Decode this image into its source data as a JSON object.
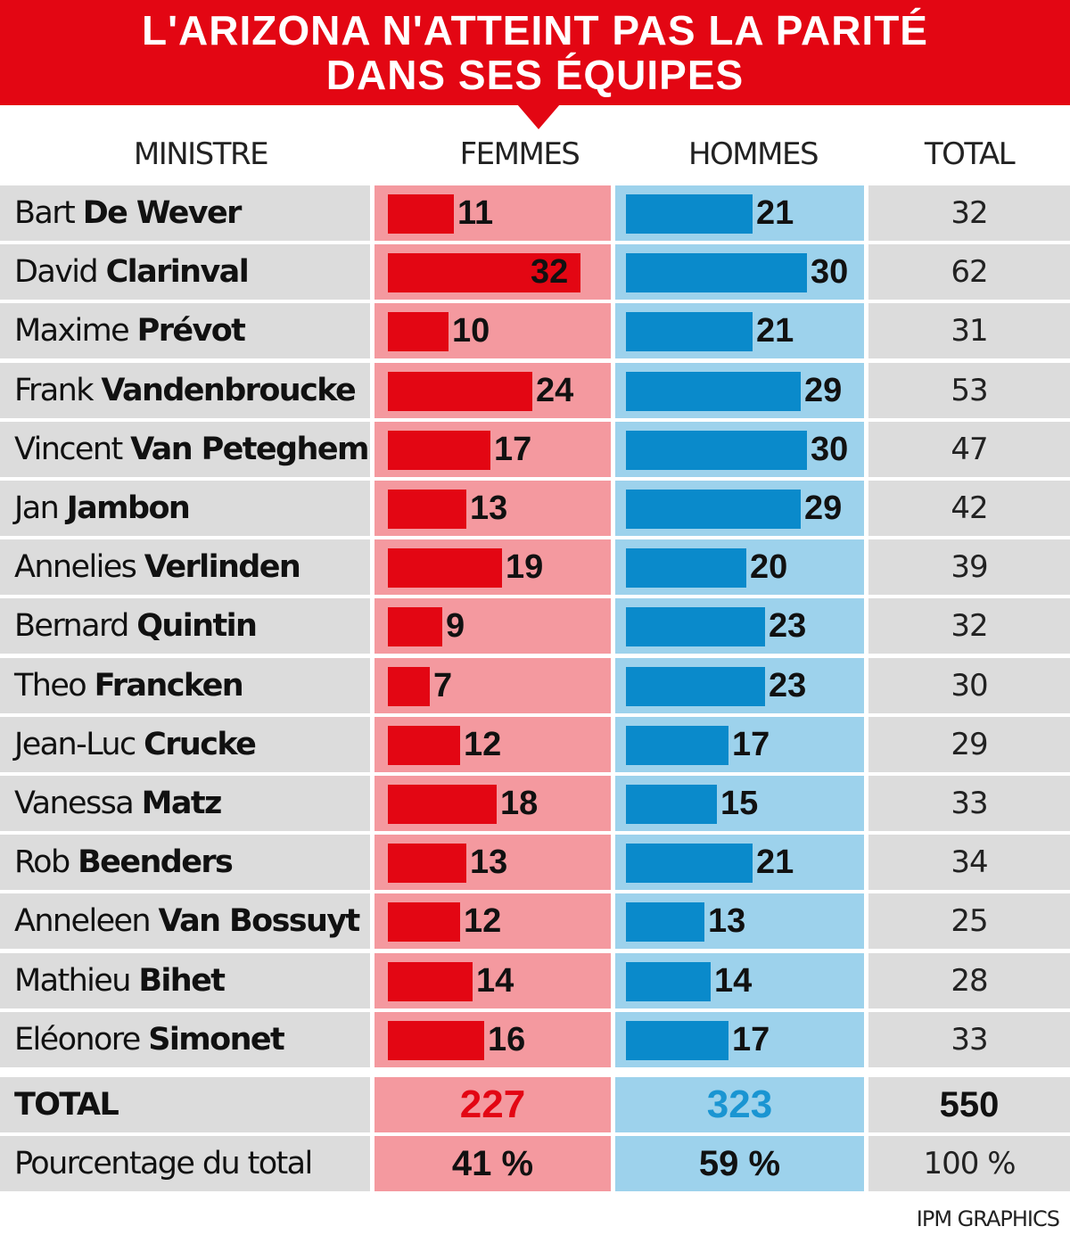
{
  "title_lines": [
    "L'ARIZONA N'ATTEINT PAS LA PARITÉ",
    "DANS SES ÉQUIPES"
  ],
  "columns": {
    "minister": "MINISTRE",
    "women": "FEMMES",
    "men": "HOMMES",
    "total": "TOTAL"
  },
  "colors": {
    "women_bar": "#e30613",
    "women_bg": "#f4999f",
    "men_bar": "#0a8acb",
    "men_bg": "#9dd2ec",
    "name_bg": "#dcdcdc"
  },
  "chart_data": {
    "type": "bar",
    "title": "L'ARIZONA N'ATTEINT PAS LA PARITÉ DANS SES ÉQUIPES",
    "categories": [
      "Bart De Wever",
      "David Clarinval",
      "Maxime Prévot",
      "Frank Vandenbroucke",
      "Vincent Van Peteghem",
      "Jan Jambon",
      "Annelies Verlinden",
      "Bernard Quintin",
      "Theo Francken",
      "Jean-Luc Crucke",
      "Vanessa Matz",
      "Rob Beenders",
      "Anneleen Van Bossuyt",
      "Mathieu Bihet",
      "Eléonore Simonet"
    ],
    "series": [
      {
        "name": "FEMMES",
        "values": [
          11,
          32,
          10,
          24,
          17,
          13,
          19,
          9,
          7,
          12,
          18,
          13,
          12,
          14,
          16
        ]
      },
      {
        "name": "HOMMES",
        "values": [
          21,
          30,
          21,
          29,
          30,
          29,
          20,
          23,
          23,
          17,
          15,
          21,
          13,
          14,
          17
        ]
      }
    ],
    "totals": [
      32,
      62,
      31,
      53,
      47,
      42,
      39,
      32,
      30,
      29,
      33,
      34,
      25,
      28,
      33
    ],
    "scale_max": 32
  },
  "rows": [
    {
      "first": "Bart",
      "last": "De Wever",
      "women": "11",
      "men": "21",
      "total": "32"
    },
    {
      "first": "David",
      "last": "Clarinval",
      "women": "32",
      "men": "30",
      "total": "62"
    },
    {
      "first": "Maxime",
      "last": "Prévot",
      "women": "10",
      "men": "21",
      "total": "31"
    },
    {
      "first": "Frank",
      "last": "Vandenbroucke",
      "women": "24",
      "men": "29",
      "total": "53"
    },
    {
      "first": "Vincent",
      "last": "Van Peteghem",
      "women": "17",
      "men": "30",
      "total": "47"
    },
    {
      "first": "Jan",
      "last": "Jambon",
      "women": "13",
      "men": "29",
      "total": "42"
    },
    {
      "first": "Annelies",
      "last": "Verlinden",
      "women": "19",
      "men": "20",
      "total": "39"
    },
    {
      "first": "Bernard",
      "last": "Quintin",
      "women": "9",
      "men": "23",
      "total": "32"
    },
    {
      "first": "Theo",
      "last": "Francken",
      "women": "7",
      "men": "23",
      "total": "30"
    },
    {
      "first": "Jean-Luc",
      "last": "Crucke",
      "women": "12",
      "men": "17",
      "total": "29"
    },
    {
      "first": "Vanessa",
      "last": "Matz",
      "women": "18",
      "men": "15",
      "total": "33"
    },
    {
      "first": "Rob",
      "last": "Beenders",
      "women": "13",
      "men": "21",
      "total": "34"
    },
    {
      "first": "Anneleen",
      "last": "Van Bossuyt",
      "women": "12",
      "men": "13",
      "total": "25"
    },
    {
      "first": "Mathieu",
      "last": "Bihet",
      "women": "14",
      "men": "14",
      "total": "28"
    },
    {
      "first": "Eléonore",
      "last": "Simonet",
      "women": "16",
      "men": "17",
      "total": "33"
    }
  ],
  "summary": {
    "total_label": "TOTAL",
    "total_women": "227",
    "total_men": "323",
    "total_all": "550",
    "pct_label": "Pourcentage du total",
    "pct_women": "41 %",
    "pct_men": "59 %",
    "pct_all": "100 %"
  },
  "credit": "IPM GRAPHICS"
}
